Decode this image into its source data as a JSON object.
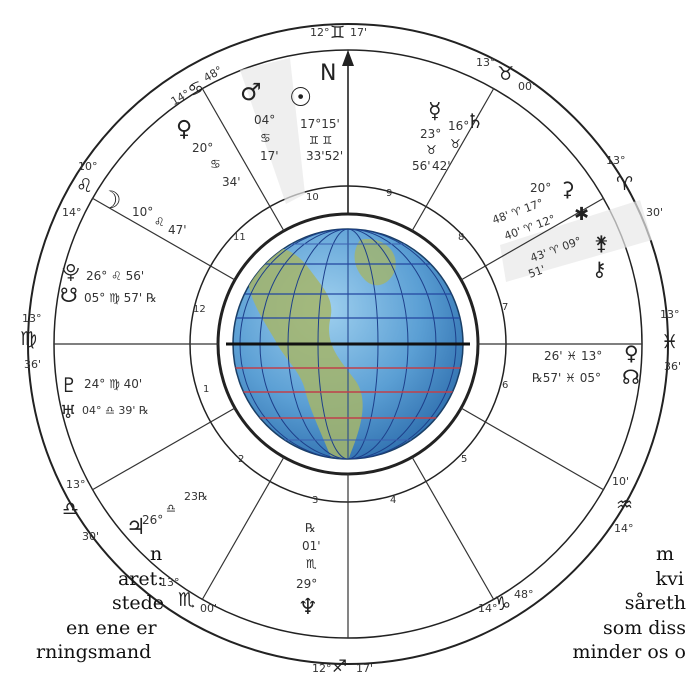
{
  "signs": {
    "gemini": {
      "deg": "12°",
      "glyph": "♊",
      "min": "17'"
    },
    "cancer": {
      "deg": "14°",
      "glyph": "♋",
      "min": "48°"
    },
    "leo": {
      "deg": "14°",
      "glyph": "♌",
      "min": "10°"
    },
    "virgo": {
      "deg": "13°",
      "glyph": "♍",
      "min": "36'"
    },
    "libra": {
      "deg": "13°",
      "glyph": "♎",
      "min": "30'"
    },
    "scorpio": {
      "deg": "13°",
      "glyph": "♏",
      "min": "00'"
    },
    "sagittarius": {
      "deg": "12°",
      "glyph": "♐",
      "min": "17'"
    },
    "capricorn": {
      "deg": "14°",
      "glyph": "♑",
      "min": "48°"
    },
    "aquarius": {
      "deg": "14°",
      "glyph": "♒",
      "min": "10'"
    },
    "pisces": {
      "deg": "13°",
      "glyph": "♓",
      "min": "36'"
    },
    "aries": {
      "deg": "13°",
      "glyph": "♈",
      "min": "30'"
    },
    "taurus": {
      "deg": "13°",
      "glyph": "♉",
      "min": "00'"
    }
  },
  "houses": [
    "1",
    "2",
    "3",
    "4",
    "5",
    "6",
    "7",
    "8",
    "9",
    "10",
    "11",
    "12"
  ],
  "midheaven_glyph": "N",
  "planets": {
    "mars": {
      "glyph": "♂",
      "deg": "04°",
      "sign": "♋",
      "min": "17'"
    },
    "sun_node": {
      "glyph": "☉",
      "deg": "17°15'",
      "sign": "♊ ♊",
      "min": "33'52'"
    },
    "mercury": {
      "glyph": "☿",
      "deg": "23°",
      "sign": "♉",
      "min": "56'"
    },
    "saturn": {
      "glyph": "♄",
      "deg": "16°",
      "sign": "♉",
      "min": "42'"
    },
    "venus": {
      "glyph": "♀",
      "deg": "20°",
      "sign": "♋",
      "min": "34'"
    },
    "moon": {
      "glyph": "☽",
      "deg": "10°",
      "sign": "♌",
      "min": "47'"
    },
    "pluto_small": {
      "glyph": "⯓",
      "text": "26° ♌ 56'"
    },
    "southnode": {
      "glyph": "☋",
      "text": "05° ♍ 57' ℞"
    },
    "pluto": {
      "glyph": "♇",
      "text": "24° ♍ 40'"
    },
    "uranus": {
      "glyph": "♅",
      "text": "04° ♎ 39' ℞"
    },
    "jupiter": {
      "glyph": "♃",
      "deg": "26°",
      "sign": "♎",
      "min": "23℞"
    },
    "neptune": {
      "glyph": "♆",
      "rx": "℞",
      "min": "01'",
      "sign": "♏",
      "deg": "29°"
    },
    "chiron_group": {
      "ceres": "⚳",
      "vesta": "✱",
      "juno": "⚵",
      "chiron": "⚷",
      "line1": "20°",
      "line2": "48' ♈ 17°",
      "line3": "40' ♈ 12°",
      "line4": "43' ♈ 09°",
      "line5": "51'"
    },
    "venus_node_right": {
      "glyph1": "♀",
      "glyph2": "☊",
      "line1": "26' ♓ 13°",
      "line2": "℞57' ♓ 05°"
    }
  },
  "text_left": [
    "n",
    "aret:",
    "stede",
    "en ene er",
    "rningsmand"
  ],
  "text_right": [
    "m",
    "kvi",
    "såreth",
    "som diss",
    "minder os o"
  ]
}
